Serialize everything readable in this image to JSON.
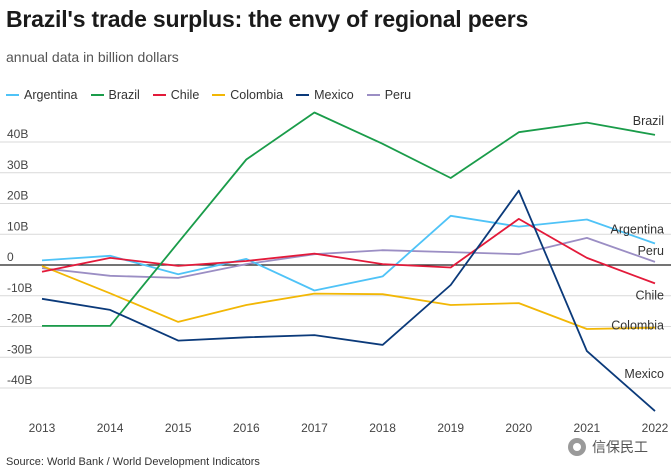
{
  "chart_data": {
    "type": "line",
    "title": "Brazil's trade surplus: the envy of regional peers",
    "subtitle": "annual data in billion dollars",
    "x": [
      2013,
      2014,
      2015,
      2016,
      2017,
      2018,
      2019,
      2020,
      2021,
      2022
    ],
    "ylim": [
      -45,
      50
    ],
    "yticks": [
      {
        "value": 40,
        "label": "40B"
      },
      {
        "value": 30,
        "label": "30B"
      },
      {
        "value": 20,
        "label": "20B"
      },
      {
        "value": 10,
        "label": "10B"
      },
      {
        "value": 0,
        "label": "0"
      },
      {
        "value": -10,
        "label": "-10B"
      },
      {
        "value": -20,
        "label": "-20B"
      },
      {
        "value": -30,
        "label": "-30B"
      },
      {
        "value": -40,
        "label": "-40B"
      }
    ],
    "grid": "horizontal",
    "legend_position": "top-left",
    "series": [
      {
        "name": "Argentina",
        "color": "#4fc3f7",
        "end_label": "Argentina",
        "values": [
          1.5,
          3.0,
          -3.0,
          2.0,
          -8.3,
          -3.7,
          16.0,
          12.5,
          14.8,
          7.0
        ]
      },
      {
        "name": "Brazil",
        "color": "#1a9c4a",
        "end_label": "Brazil",
        "values": [
          -19.8,
          -19.8,
          7.3,
          34.3,
          49.6,
          39.4,
          28.3,
          43.2,
          46.3,
          42.3
        ]
      },
      {
        "name": "Chile",
        "color": "#e31a3a",
        "end_label": "Chile",
        "values": [
          -2.2,
          2.3,
          -0.3,
          1.3,
          3.7,
          0.3,
          -0.8,
          15.0,
          2.3,
          -6.0
        ]
      },
      {
        "name": "Colombia",
        "color": "#f2b705",
        "end_label": "Colombia",
        "values": [
          -0.3,
          -9.2,
          -18.5,
          -13.0,
          -9.3,
          -9.5,
          -13.0,
          -12.4,
          -20.8,
          -20.4
        ]
      },
      {
        "name": "Mexico",
        "color": "#0b3a7a",
        "end_label": "Mexico",
        "values": [
          -11.0,
          -14.6,
          -24.6,
          -23.5,
          -22.8,
          -26.0,
          -6.5,
          24.2,
          -28.0,
          -47.5
        ]
      },
      {
        "name": "Peru",
        "color": "#9b8ec4",
        "end_label": "Peru",
        "values": [
          -1.0,
          -3.5,
          -4.2,
          0.3,
          3.5,
          4.8,
          4.2,
          3.5,
          8.8,
          1.0
        ]
      }
    ]
  },
  "source": "Source: World Bank / World Development Indicators",
  "watermark": "信保民工"
}
